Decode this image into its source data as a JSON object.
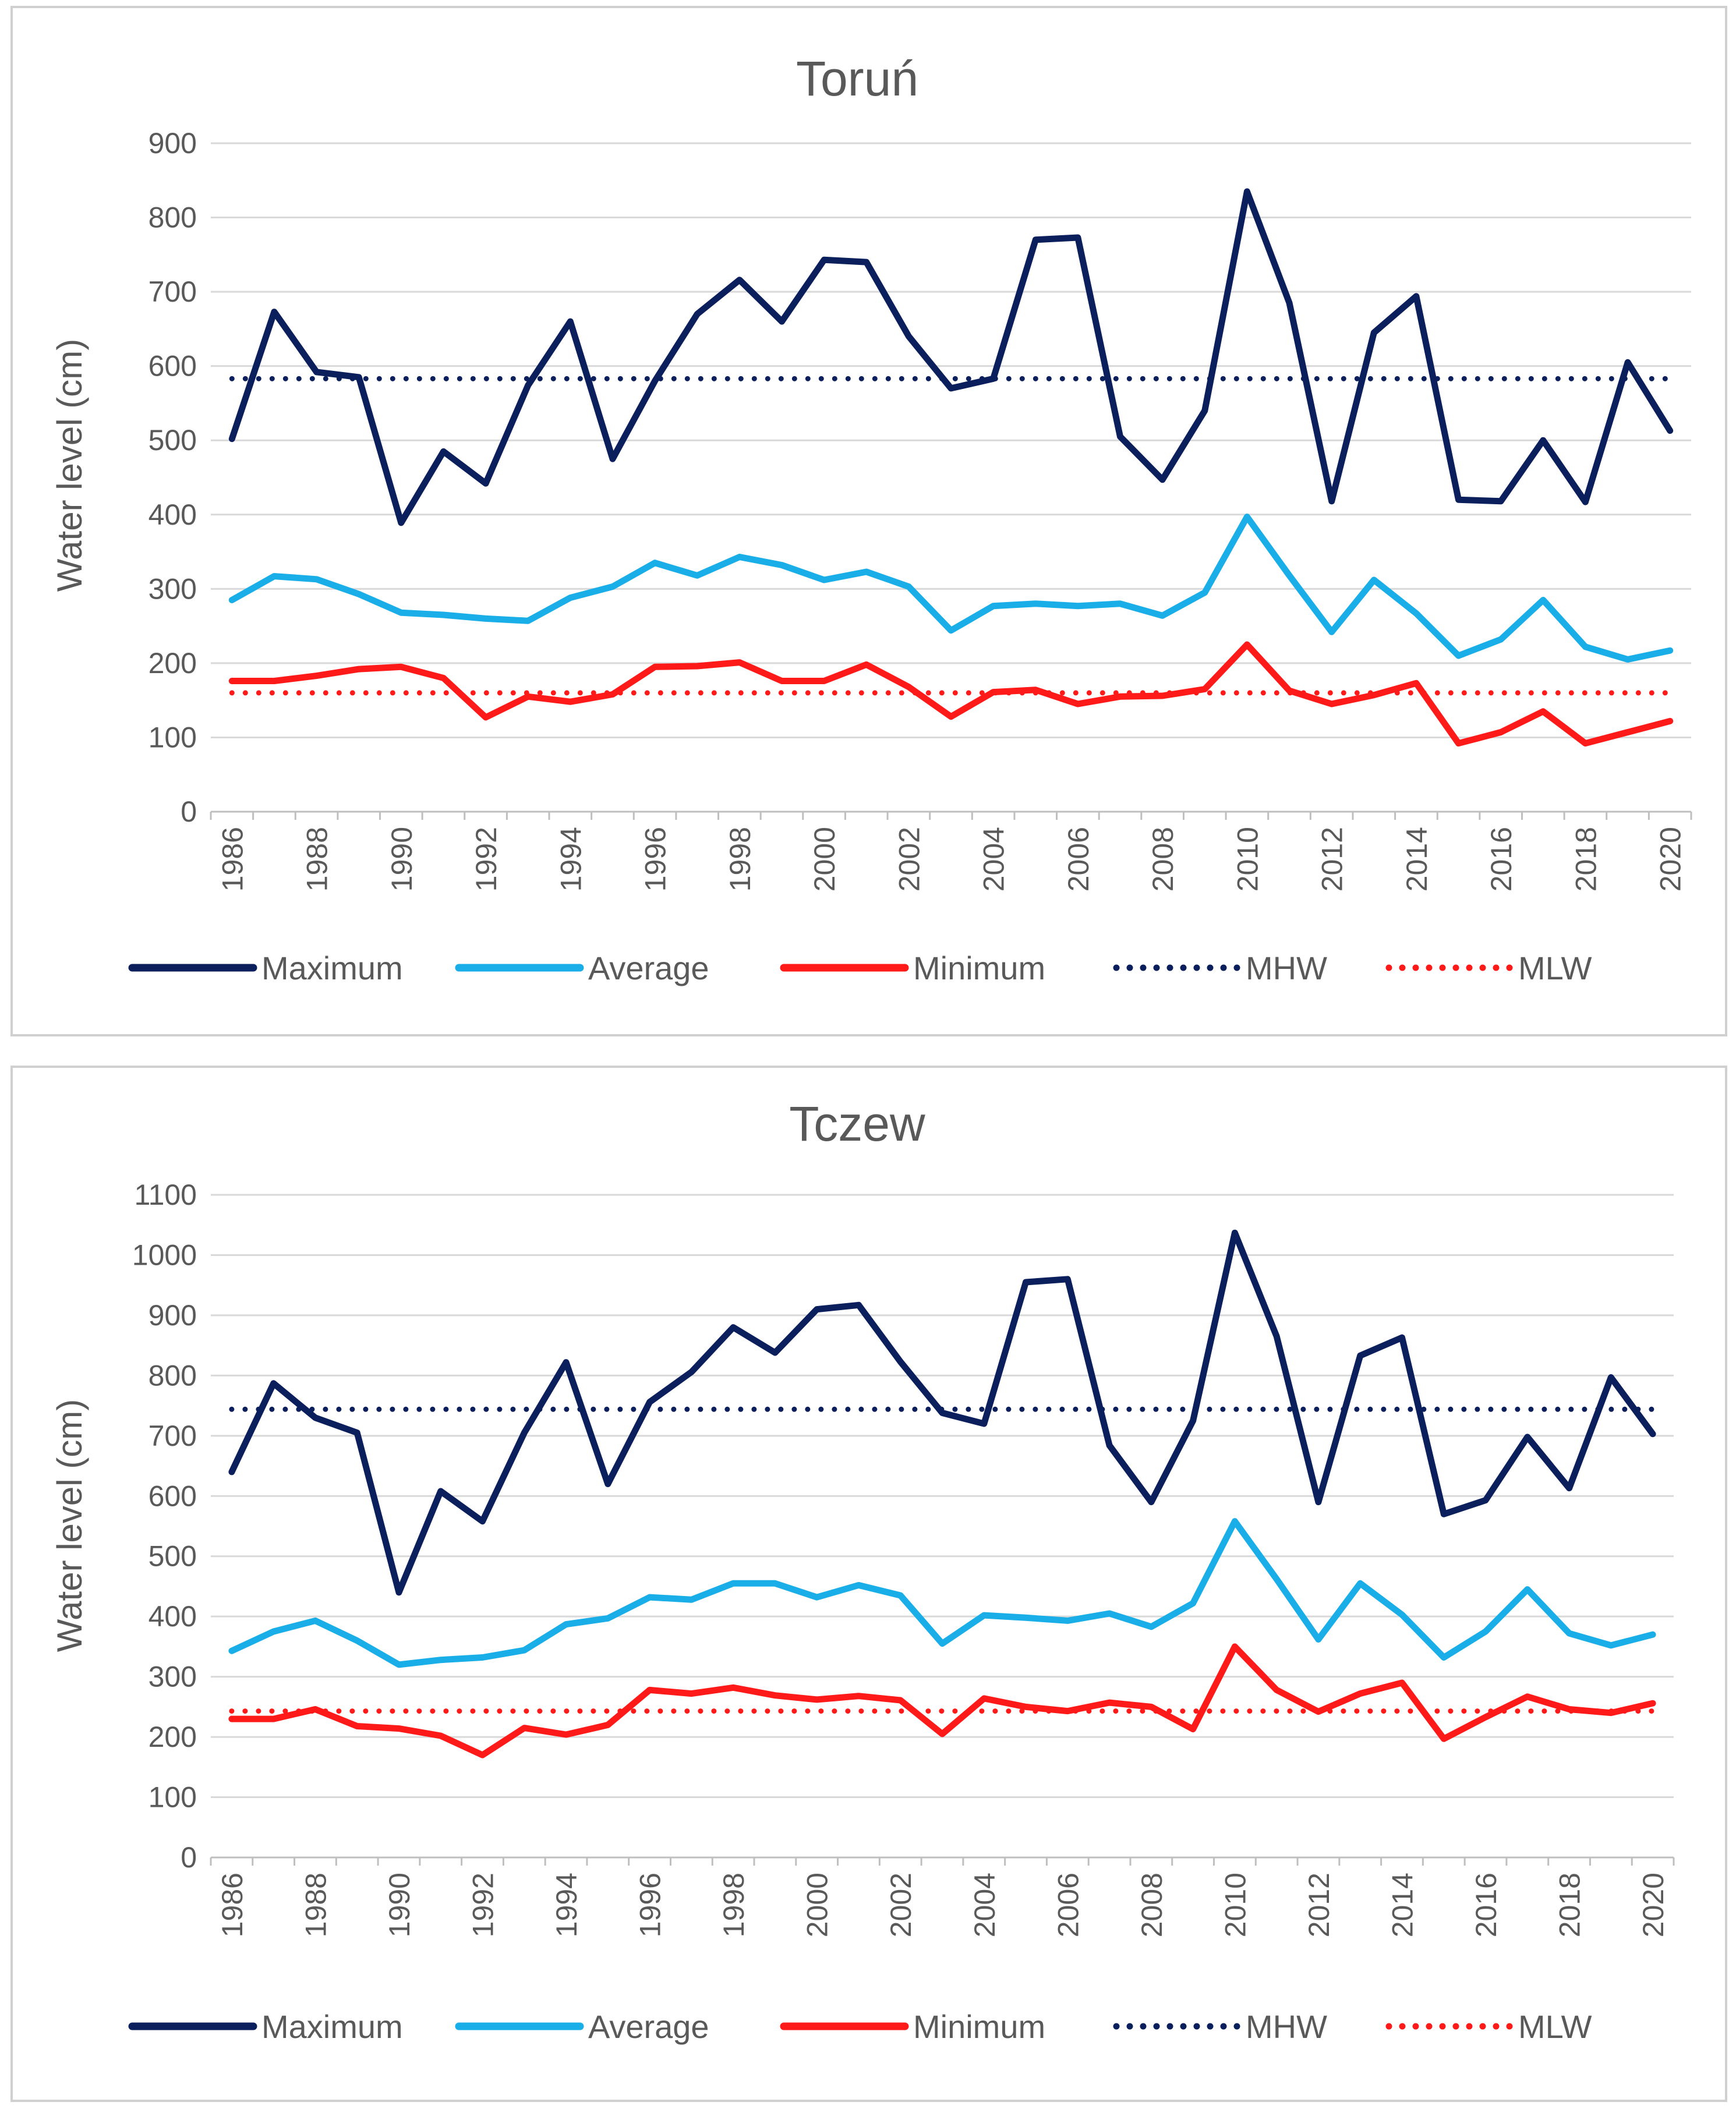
{
  "chart_data": [
    {
      "type": "line",
      "title": "Toruń",
      "xlabel": "",
      "ylabel": "Water level (cm)",
      "ylim": [
        0,
        900
      ],
      "yticks": [
        0,
        100,
        200,
        300,
        400,
        500,
        600,
        700,
        800,
        900
      ],
      "grid": true,
      "legend_position": "bottom",
      "x": [
        1986,
        1987,
        1988,
        1989,
        1990,
        1991,
        1992,
        1993,
        1994,
        1995,
        1996,
        1997,
        1998,
        1999,
        2000,
        2001,
        2002,
        2003,
        2004,
        2005,
        2006,
        2007,
        2008,
        2009,
        2010,
        2011,
        2012,
        2013,
        2014,
        2015,
        2016,
        2017,
        2018,
        2019,
        2020
      ],
      "xtick_labels": [
        "1986",
        "1988",
        "1990",
        "1992",
        "1994",
        "1996",
        "1998",
        "2000",
        "2002",
        "2004",
        "2006",
        "2008",
        "2010",
        "2012",
        "2014",
        "2016",
        "2018",
        "2020"
      ],
      "series": [
        {
          "name": "Maximum",
          "style": "solid",
          "color": "#0b1f5c",
          "values": [
            502,
            673,
            592,
            585,
            389,
            485,
            442,
            574,
            660,
            475,
            580,
            670,
            716,
            660,
            743,
            740,
            640,
            570,
            583,
            770,
            773,
            505,
            447,
            540,
            835,
            685,
            418,
            645,
            694,
            420,
            418,
            500,
            417,
            605,
            513
          ]
        },
        {
          "name": "Average",
          "style": "solid",
          "color": "#1aaee8",
          "values": [
            285,
            317,
            313,
            293,
            268,
            265,
            260,
            257,
            288,
            303,
            335,
            318,
            343,
            332,
            312,
            323,
            303,
            244,
            277,
            280,
            277,
            280,
            264,
            295,
            397,
            318,
            242,
            312,
            267,
            210,
            232,
            285,
            222,
            205,
            217
          ]
        },
        {
          "name": "Minimum",
          "style": "solid",
          "color": "#ff1a1a",
          "values": [
            176,
            176,
            183,
            192,
            195,
            180,
            127,
            155,
            148,
            158,
            195,
            196,
            201,
            176,
            176,
            198,
            168,
            128,
            161,
            164,
            145,
            155,
            156,
            165,
            225,
            163,
            145,
            157,
            173,
            92,
            107,
            135,
            92,
            107,
            122
          ]
        },
        {
          "name": "MHW",
          "style": "dotted",
          "color": "#0b1f5c",
          "value": 583
        },
        {
          "name": "MLW",
          "style": "dotted",
          "color": "#ff1a1a",
          "value": 160
        }
      ]
    },
    {
      "type": "line",
      "title": "Tczew",
      "xlabel": "",
      "ylabel": "Water level (cm)",
      "ylim": [
        0,
        1100
      ],
      "yticks": [
        0,
        100,
        200,
        300,
        400,
        500,
        600,
        700,
        800,
        900,
        1000,
        1100
      ],
      "grid": true,
      "legend_position": "bottom",
      "x": [
        1986,
        1987,
        1988,
        1989,
        1990,
        1991,
        1992,
        1993,
        1994,
        1995,
        1996,
        1997,
        1998,
        1999,
        2000,
        2001,
        2002,
        2003,
        2004,
        2005,
        2006,
        2007,
        2008,
        2009,
        2010,
        2011,
        2012,
        2013,
        2014,
        2015,
        2016,
        2017,
        2018,
        2019,
        2020
      ],
      "xtick_labels": [
        "1986",
        "1988",
        "1990",
        "1992",
        "1994",
        "1996",
        "1998",
        "2000",
        "2002",
        "2004",
        "2006",
        "2008",
        "2010",
        "2012",
        "2014",
        "2016",
        "2018",
        "2020"
      ],
      "series": [
        {
          "name": "Maximum",
          "style": "solid",
          "color": "#0b1f5c",
          "values": [
            640,
            787,
            730,
            705,
            440,
            608,
            558,
            705,
            822,
            620,
            756,
            806,
            880,
            838,
            910,
            917,
            823,
            738,
            720,
            955,
            960,
            684,
            590,
            725,
            1037,
            865,
            590,
            833,
            863,
            570,
            593,
            698,
            613,
            797,
            703
          ]
        },
        {
          "name": "Average",
          "style": "solid",
          "color": "#1aaee8",
          "values": [
            343,
            375,
            393,
            360,
            320,
            328,
            332,
            344,
            387,
            397,
            432,
            428,
            455,
            455,
            432,
            452,
            435,
            355,
            402,
            398,
            393,
            405,
            383,
            422,
            558,
            462,
            362,
            455,
            403,
            332,
            375,
            445,
            372,
            352,
            370
          ]
        },
        {
          "name": "Minimum",
          "style": "solid",
          "color": "#ff1a1a",
          "values": [
            230,
            230,
            246,
            218,
            214,
            202,
            170,
            215,
            204,
            220,
            278,
            272,
            282,
            269,
            262,
            268,
            261,
            205,
            264,
            250,
            243,
            257,
            250,
            213,
            350,
            278,
            242,
            272,
            290,
            197,
            233,
            267,
            246,
            240,
            256
          ]
        },
        {
          "name": "MHW",
          "style": "dotted",
          "color": "#0b1f5c",
          "value": 744
        },
        {
          "name": "MLW",
          "style": "dotted",
          "color": "#ff1a1a",
          "value": 243
        }
      ]
    }
  ]
}
